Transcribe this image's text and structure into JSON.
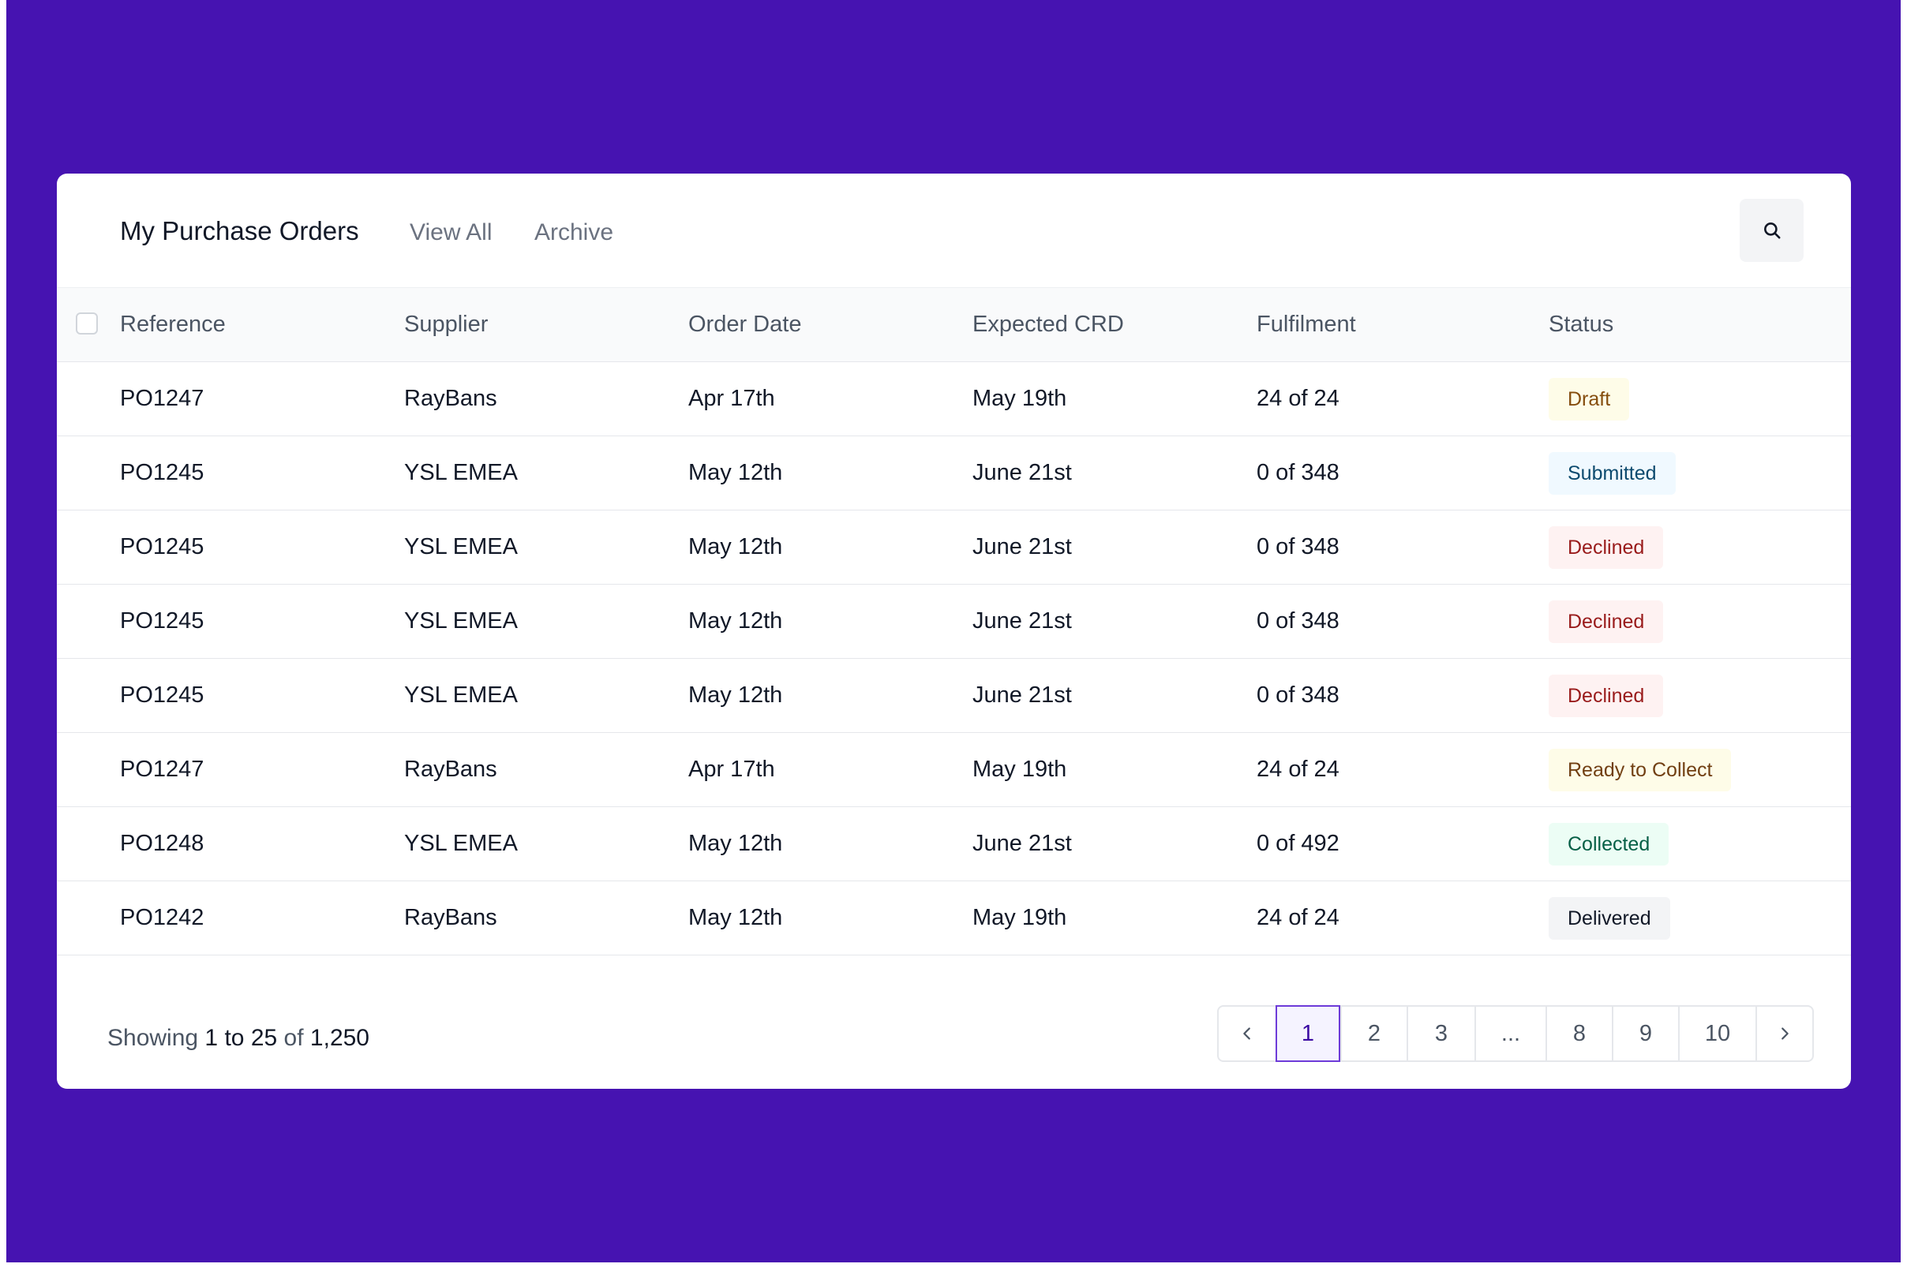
{
  "header": {
    "title": "My Purchase Orders",
    "tabs": [
      "View All",
      "Archive"
    ]
  },
  "table": {
    "columns": [
      "Reference",
      "Supplier",
      "Order Date",
      "Expected CRD",
      "Fulfilment",
      "Status"
    ],
    "rows": [
      {
        "reference": "PO1247",
        "supplier": "RayBans",
        "order_date": "Apr 17th",
        "expected_crd": "May 19th",
        "fulfilment": "24 of 24",
        "status": "Draft"
      },
      {
        "reference": "PO1245",
        "supplier": "YSL EMEA",
        "order_date": "May 12th",
        "expected_crd": "June 21st",
        "fulfilment": "0 of 348",
        "status": "Submitted"
      },
      {
        "reference": "PO1245",
        "supplier": "YSL EMEA",
        "order_date": "May 12th",
        "expected_crd": "June 21st",
        "fulfilment": "0 of 348",
        "status": "Declined"
      },
      {
        "reference": "PO1245",
        "supplier": "YSL EMEA",
        "order_date": "May 12th",
        "expected_crd": "June 21st",
        "fulfilment": "0 of 348",
        "status": "Declined"
      },
      {
        "reference": "PO1245",
        "supplier": "YSL EMEA",
        "order_date": "May 12th",
        "expected_crd": "June 21st",
        "fulfilment": "0 of 348",
        "status": "Declined"
      },
      {
        "reference": "PO1247",
        "supplier": "RayBans",
        "order_date": "Apr 17th",
        "expected_crd": "May 19th",
        "fulfilment": "24 of 24",
        "status": "Ready to Collect"
      },
      {
        "reference": "PO1248",
        "supplier": "YSL EMEA",
        "order_date": "May 12th",
        "expected_crd": "June 21st",
        "fulfilment": "0 of 492",
        "status": "Collected"
      },
      {
        "reference": "PO1242",
        "supplier": "RayBans",
        "order_date": "May 12th",
        "expected_crd": "May 19th",
        "fulfilment": "24 of 24",
        "status": "Delivered"
      }
    ]
  },
  "status_styles": {
    "Draft": {
      "bg": "#fefce8",
      "fg": "#854d0e"
    },
    "Submitted": {
      "bg": "#f0f9ff",
      "fg": "#0c4a6e"
    },
    "Declined": {
      "bg": "#fef2f2",
      "fg": "#991b1b"
    },
    "Ready to Collect": {
      "bg": "#fefce8",
      "fg": "#713f12"
    },
    "Collected": {
      "bg": "#ecfdf5",
      "fg": "#065f46"
    },
    "Delivered": {
      "bg": "#f3f4f6",
      "fg": "#111827"
    }
  },
  "footer": {
    "showing_prefix": "Showing",
    "range_start": "1",
    "to_word": "to",
    "range_end": "25",
    "of_word": "of",
    "total": "1,250"
  },
  "pagination": {
    "pages": [
      "1",
      "2",
      "3",
      "...",
      "8",
      "9",
      "10"
    ],
    "active": "1"
  },
  "icons": {
    "search": "search-icon",
    "prev": "chevron-left-icon",
    "next": "chevron-right-icon"
  },
  "colors": {
    "background": "#4613b1",
    "card": "#ffffff",
    "accent": "#6d3bd8"
  }
}
